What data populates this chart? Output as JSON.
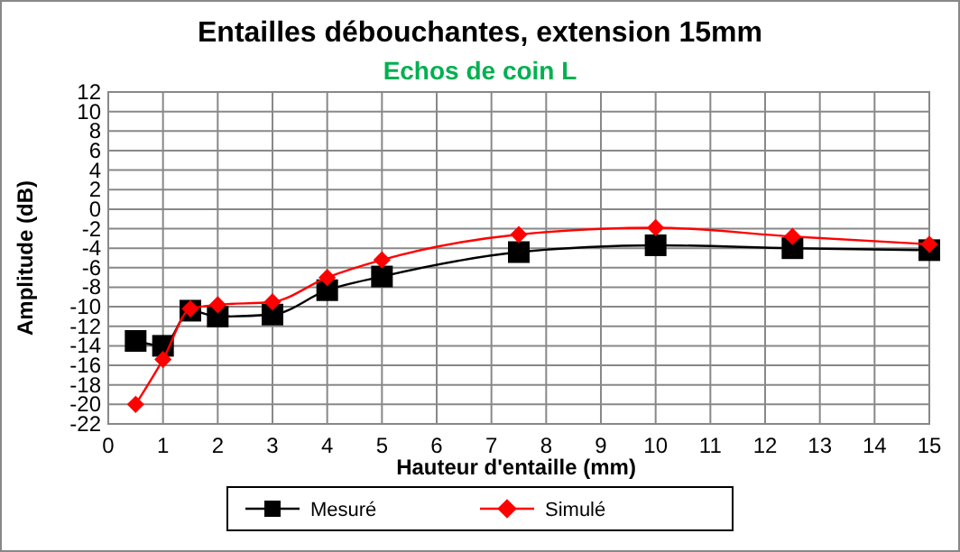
{
  "chart_data": {
    "type": "line",
    "title": "Entailles débouchantes, extension 15mm",
    "subtitle": "Echos de coin L",
    "xlabel": "Hauteur d'entaille (mm)",
    "ylabel": "Amplitude (dB)",
    "xlim": [
      0,
      15
    ],
    "xticks": [
      0,
      1,
      2,
      3,
      4,
      5,
      6,
      7,
      8,
      9,
      10,
      11,
      12,
      13,
      14,
      15
    ],
    "ylim": [
      -22,
      12
    ],
    "yticks": [
      -22,
      -20,
      -18,
      -16,
      -14,
      -12,
      -10,
      -8,
      -6,
      -4,
      -2,
      0,
      2,
      4,
      6,
      8,
      10,
      12
    ],
    "grid": true,
    "legend": "bottom",
    "line_style": "solid",
    "series": [
      {
        "name": "Mesuré",
        "color": "#000000",
        "marker": "square",
        "x": [
          0.5,
          1,
          1.5,
          2,
          3,
          4,
          5,
          7.5,
          10,
          12.5,
          15
        ],
        "values": [
          -13.5,
          -14,
          -10.4,
          -11,
          -10.8,
          -8.3,
          -6.9,
          -4.4,
          -3.7,
          -4,
          -4.2
        ]
      },
      {
        "name": "Simulé",
        "color": "#ff0000",
        "marker": "diamond",
        "x": [
          0.5,
          1,
          1.5,
          2,
          3,
          4,
          5,
          7.5,
          10,
          12.5,
          15
        ],
        "values": [
          -20,
          -15.4,
          -10.2,
          -9.8,
          -9.5,
          -7,
          -5.2,
          -2.6,
          -1.9,
          -2.8,
          -3.6
        ]
      }
    ]
  }
}
